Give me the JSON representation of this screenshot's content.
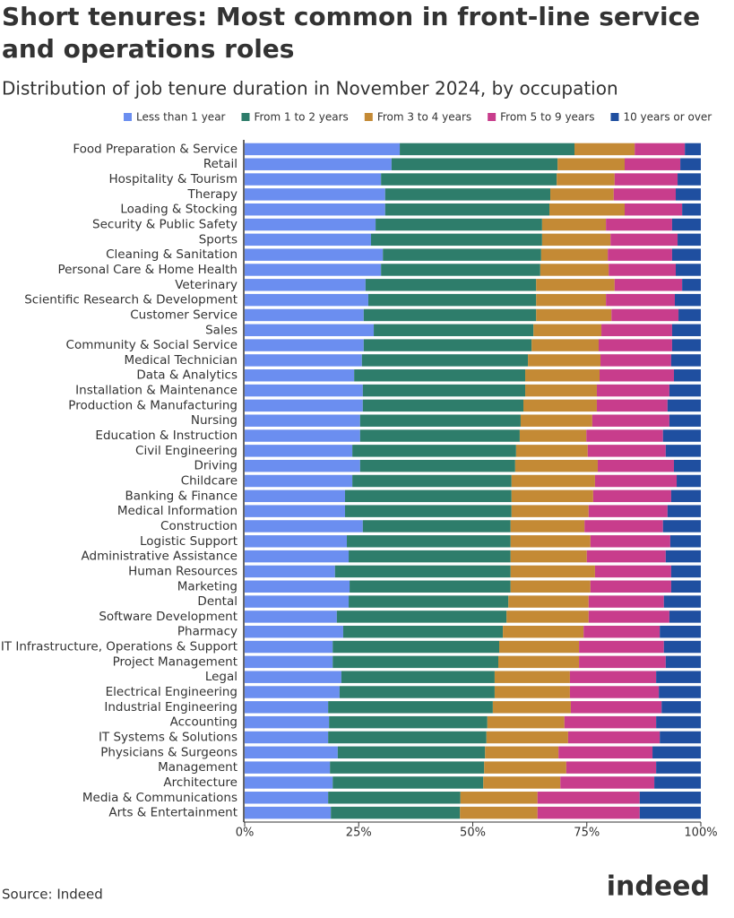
{
  "chart_data": {
    "type": "stacked_barh",
    "title": "Short tenures: Most common in front-line service and operations roles",
    "subtitle": "Distribution of job tenure duration in November 2024, by occupation",
    "categories": [
      "Food Preparation & Service",
      "Retail",
      "Hospitality & Tourism",
      "Therapy",
      "Loading & Stocking",
      "Security & Public Safety",
      "Sports",
      "Cleaning & Sanitation",
      "Personal Care & Home Health",
      "Veterinary",
      "Scientific Research & Development",
      "Customer Service",
      "Sales",
      "Community & Social Service",
      "Medical Technician",
      "Data & Analytics",
      "Installation & Maintenance",
      "Production & Manufacturing",
      "Nursing",
      "Education & Instruction",
      "Civil Engineering",
      "Driving",
      "Childcare",
      "Banking & Finance",
      "Medical Information",
      "Construction",
      "Logistic Support",
      "Administrative Assistance",
      "Human Resources",
      "Marketing",
      "Dental",
      "Software Development",
      "Pharmacy",
      "IT Infrastructure, Operations & Support",
      "Project Management",
      "Legal",
      "Electrical Engineering",
      "Industrial Engineering",
      "Accounting",
      "IT Systems & Solutions",
      "Physicians & Surgeons",
      "Management",
      "Architecture",
      "Media & Communications",
      "Arts & Entertainment"
    ],
    "series": [
      {
        "name": "Less than 1 year",
        "color": "#6b8ef0",
        "values": [
          34.0,
          32.2,
          29.9,
          30.8,
          30.8,
          28.7,
          27.7,
          30.3,
          29.9,
          26.5,
          27.1,
          26.1,
          28.3,
          26.1,
          25.7,
          24.0,
          25.9,
          25.9,
          25.3,
          25.3,
          23.6,
          25.3,
          23.6,
          22.0,
          22.0,
          25.9,
          22.4,
          22.8,
          19.8,
          23.0,
          22.8,
          20.2,
          21.6,
          19.3,
          19.3,
          21.2,
          20.8,
          18.3,
          18.5,
          18.3,
          20.4,
          18.7,
          19.3,
          18.3,
          18.9
        ]
      },
      {
        "name": "From 1 to 2 years",
        "color": "#2e7d6b",
        "values": [
          38.3,
          36.4,
          38.5,
          36.2,
          36.0,
          36.5,
          37.5,
          34.7,
          34.9,
          37.4,
          36.8,
          37.8,
          35.0,
          36.8,
          36.4,
          37.5,
          35.6,
          35.2,
          35.2,
          35.0,
          35.9,
          34.0,
          34.9,
          36.5,
          36.5,
          32.4,
          35.9,
          35.5,
          38.5,
          35.3,
          35.0,
          37.2,
          35.0,
          36.5,
          36.3,
          33.6,
          34.0,
          36.1,
          34.7,
          34.7,
          32.3,
          33.8,
          33.0,
          29.0,
          28.3
        ]
      },
      {
        "name": "From 3 to 4 years",
        "color": "#c48a35",
        "values": [
          13.2,
          14.7,
          12.7,
          13.9,
          16.5,
          14.0,
          15.0,
          14.6,
          15.0,
          17.2,
          15.3,
          16.5,
          14.9,
          14.7,
          15.9,
          16.3,
          15.7,
          16.1,
          15.7,
          14.6,
          15.7,
          18.1,
          18.3,
          17.9,
          16.9,
          16.2,
          17.5,
          16.7,
          18.5,
          17.5,
          17.6,
          18.0,
          17.7,
          17.5,
          17.7,
          16.5,
          16.5,
          17.1,
          16.9,
          17.9,
          16.1,
          18.0,
          16.9,
          16.9,
          17.0
        ]
      },
      {
        "name": "From 5 to 9 years",
        "color": "#c83d8c",
        "values": [
          11.0,
          12.2,
          13.8,
          13.6,
          12.6,
          14.5,
          14.7,
          14.1,
          14.7,
          14.8,
          15.1,
          14.7,
          15.5,
          16.1,
          15.5,
          16.3,
          15.9,
          15.5,
          16.9,
          16.8,
          17.1,
          16.7,
          17.9,
          17.1,
          17.3,
          17.2,
          17.5,
          17.3,
          16.7,
          17.7,
          16.5,
          17.7,
          16.7,
          18.6,
          19.0,
          18.9,
          19.5,
          19.9,
          20.1,
          20.1,
          20.6,
          19.7,
          20.6,
          22.4,
          22.4
        ]
      },
      {
        "name": "10 years or over",
        "color": "#1f4fa0",
        "values": [
          3.5,
          4.5,
          5.1,
          5.5,
          4.1,
          6.3,
          5.1,
          6.3,
          5.5,
          4.1,
          5.7,
          4.9,
          6.3,
          6.3,
          6.5,
          5.9,
          6.9,
          7.3,
          6.9,
          8.3,
          7.7,
          5.9,
          5.3,
          6.5,
          7.3,
          8.3,
          6.7,
          7.7,
          6.5,
          6.5,
          8.1,
          6.9,
          9.0,
          8.1,
          7.7,
          9.8,
          9.2,
          8.6,
          9.8,
          9.0,
          10.6,
          9.8,
          10.2,
          13.4,
          13.4
        ]
      }
    ],
    "xlim": [
      0,
      100
    ],
    "xticks": [
      {
        "value": 0,
        "label": "0%"
      },
      {
        "value": 25,
        "label": "25%"
      },
      {
        "value": 50,
        "label": "50%"
      },
      {
        "value": 75,
        "label": "75%"
      },
      {
        "value": 100,
        "label": "100%"
      }
    ],
    "source": "Source: Indeed",
    "logo": "indeed"
  }
}
